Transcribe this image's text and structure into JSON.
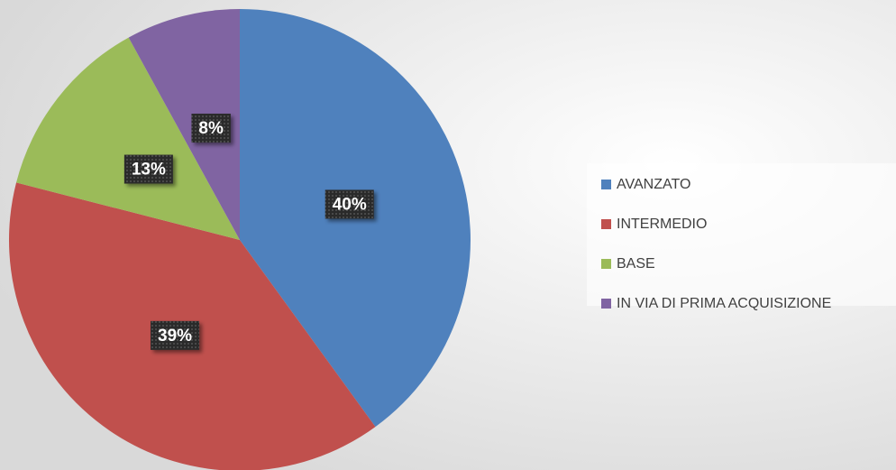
{
  "chart_data": {
    "type": "pie",
    "categories": [
      "AVANZATO",
      "INTERMEDIO",
      "BASE",
      "IN VIA DI PRIMA ACQUISIZIONE"
    ],
    "values": [
      40,
      39,
      13,
      8
    ],
    "value_labels": [
      "40%",
      "39%",
      "13%",
      "8%"
    ],
    "colors": [
      "#4f81bd",
      "#c0504d",
      "#9bbb59",
      "#8064a2"
    ],
    "legend": "right"
  }
}
